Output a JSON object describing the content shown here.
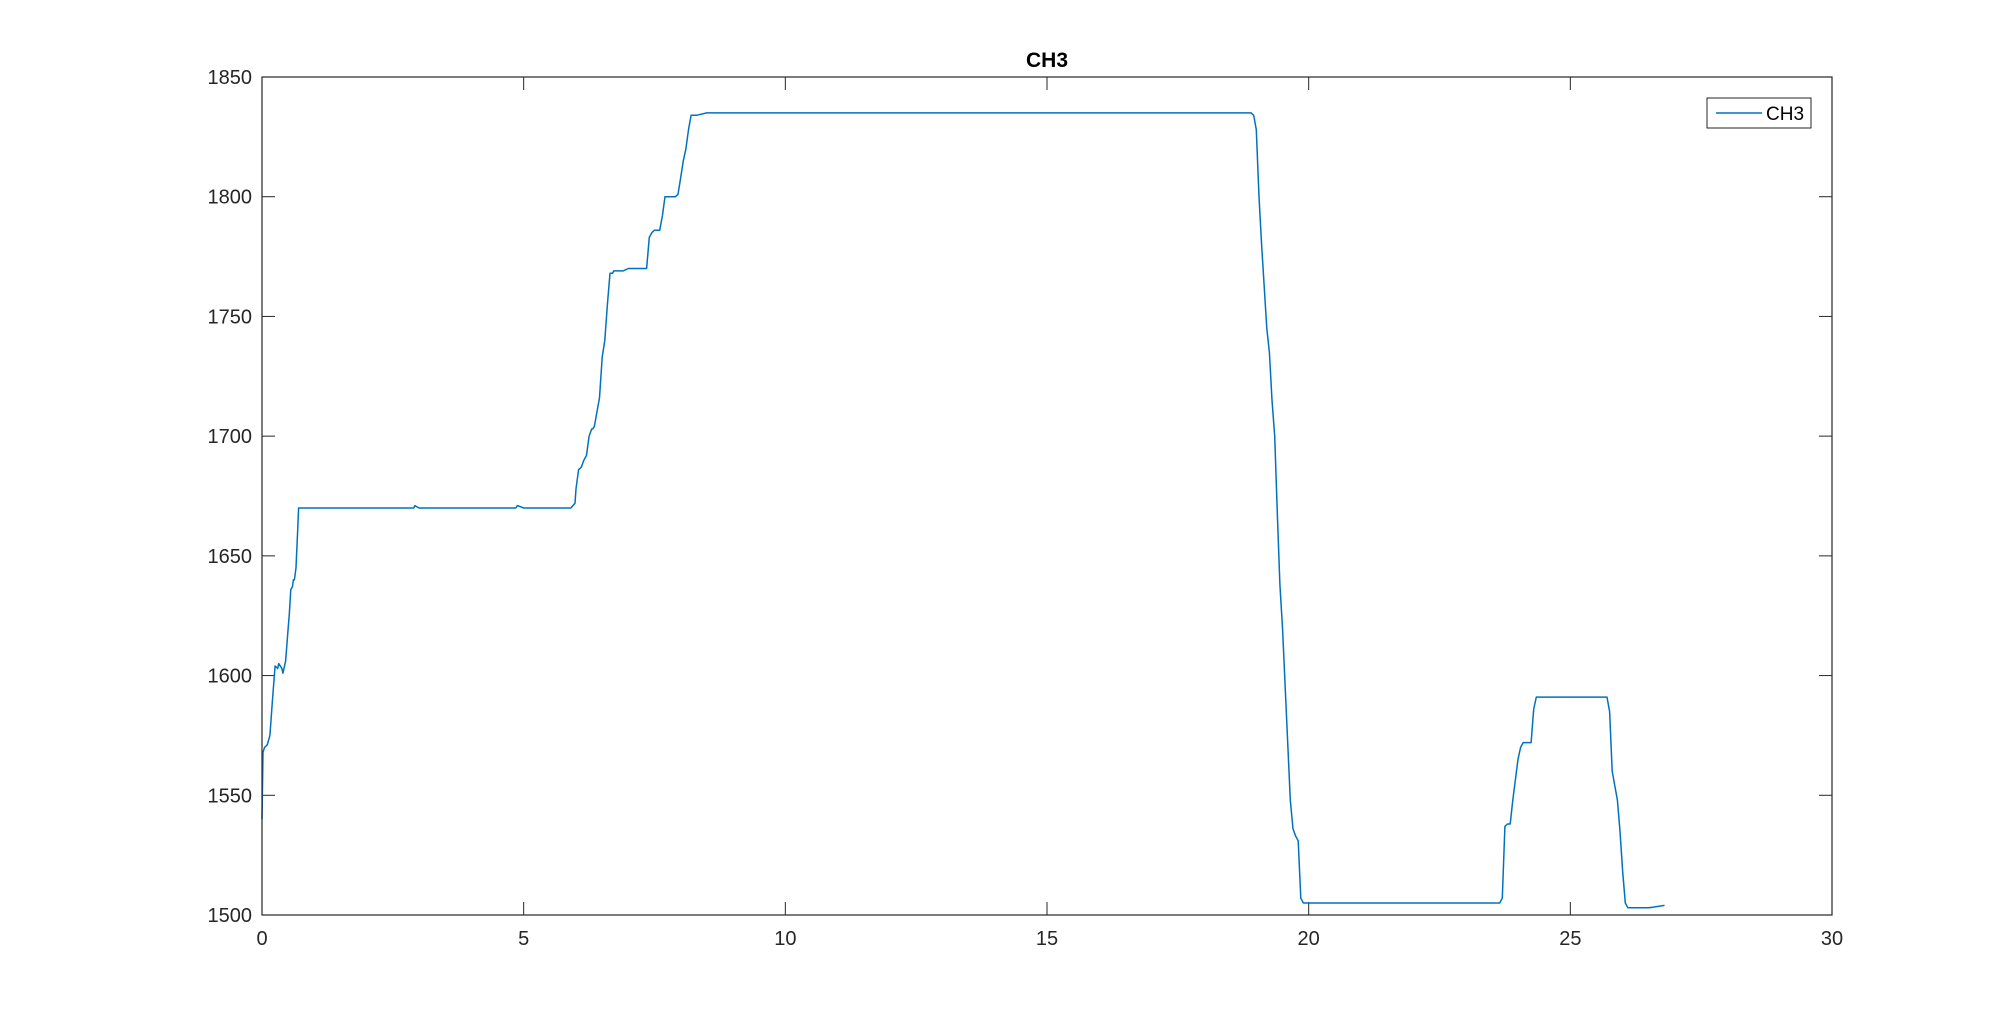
{
  "chart_data": {
    "type": "line",
    "title": "CH3",
    "xlabel": "",
    "ylabel": "",
    "xlim": [
      0,
      30
    ],
    "ylim": [
      1500,
      1850
    ],
    "xticks": [
      0,
      5,
      10,
      15,
      20,
      25,
      30
    ],
    "yticks": [
      1500,
      1550,
      1600,
      1650,
      1700,
      1750,
      1800,
      1850
    ],
    "grid": false,
    "legend": {
      "position": "top-right",
      "entries": [
        "CH3"
      ]
    },
    "colors": {
      "series": "#0072BD",
      "axes": "#262626",
      "background": "#ffffff"
    },
    "series": [
      {
        "name": "CH3",
        "color": "#0072BD",
        "x": [
          0,
          0.02,
          0.05,
          0.1,
          0.15,
          0.2,
          0.25,
          0.3,
          0.32,
          0.38,
          0.4,
          0.45,
          0.5,
          0.52,
          0.55,
          0.58,
          0.6,
          0.62,
          0.65,
          0.68,
          0.7,
          0.72,
          0.75,
          1.0,
          2.0,
          2.9,
          2.92,
          3.0,
          4.5,
          4.85,
          4.88,
          5.0,
          5.9,
          5.98,
          6.0,
          6.05,
          6.1,
          6.15,
          6.2,
          6.25,
          6.3,
          6.32,
          6.35,
          6.45,
          6.5,
          6.55,
          6.6,
          6.65,
          6.7,
          6.72,
          6.9,
          7.0,
          7.1,
          7.35,
          7.4,
          7.45,
          7.5,
          7.6,
          7.65,
          7.7,
          7.9,
          7.95,
          8.0,
          8.05,
          8.1,
          8.15,
          8.2,
          8.3,
          8.5,
          10.0,
          12.0,
          14.0,
          16.0,
          18.0,
          18.9,
          18.95,
          19.0,
          19.05,
          19.1,
          19.2,
          19.25,
          19.3,
          19.35,
          19.4,
          19.45,
          19.5,
          19.55,
          19.6,
          19.65,
          19.7,
          19.75,
          19.8,
          19.85,
          19.9,
          20.0,
          21.0,
          22.0,
          23.0,
          23.5,
          23.65,
          23.7,
          23.75,
          23.8,
          23.85,
          23.9,
          24.0,
          24.05,
          24.1,
          24.2,
          24.25,
          24.3,
          24.35,
          24.4,
          24.5,
          24.6,
          25.0,
          25.5,
          25.7,
          25.75,
          25.8,
          25.9,
          25.95,
          26.0,
          26.05,
          26.1,
          26.5,
          26.8
        ],
        "values": [
          1540,
          1568,
          1570,
          1571,
          1575,
          1590,
          1604,
          1603,
          1605,
          1603,
          1601,
          1606,
          1620,
          1625,
          1636,
          1637,
          1640,
          1640,
          1645,
          1660,
          1670,
          1670,
          1670,
          1670,
          1670,
          1670,
          1671,
          1670,
          1670,
          1670,
          1671,
          1670,
          1670,
          1672,
          1678,
          1686,
          1687,
          1690,
          1692,
          1700,
          1703,
          1703,
          1704,
          1716,
          1733,
          1740,
          1755,
          1768,
          1768,
          1769,
          1769,
          1770,
          1770,
          1770,
          1783,
          1785,
          1786,
          1786,
          1792,
          1800,
          1800,
          1801,
          1808,
          1815,
          1820,
          1828,
          1834,
          1834,
          1835,
          1835,
          1835,
          1835,
          1835,
          1835,
          1835,
          1834,
          1828,
          1800,
          1780,
          1745,
          1735,
          1715,
          1700,
          1668,
          1638,
          1620,
          1596,
          1572,
          1548,
          1536,
          1533,
          1531,
          1507,
          1505,
          1505,
          1505,
          1505,
          1505,
          1505,
          1505,
          1507,
          1537,
          1538,
          1538,
          1548,
          1565,
          1570,
          1572,
          1572,
          1572,
          1586,
          1591,
          1591,
          1591,
          1591,
          1591,
          1591,
          1591,
          1585,
          1560,
          1548,
          1535,
          1518,
          1505,
          1503,
          1503,
          1504
        ]
      }
    ]
  }
}
